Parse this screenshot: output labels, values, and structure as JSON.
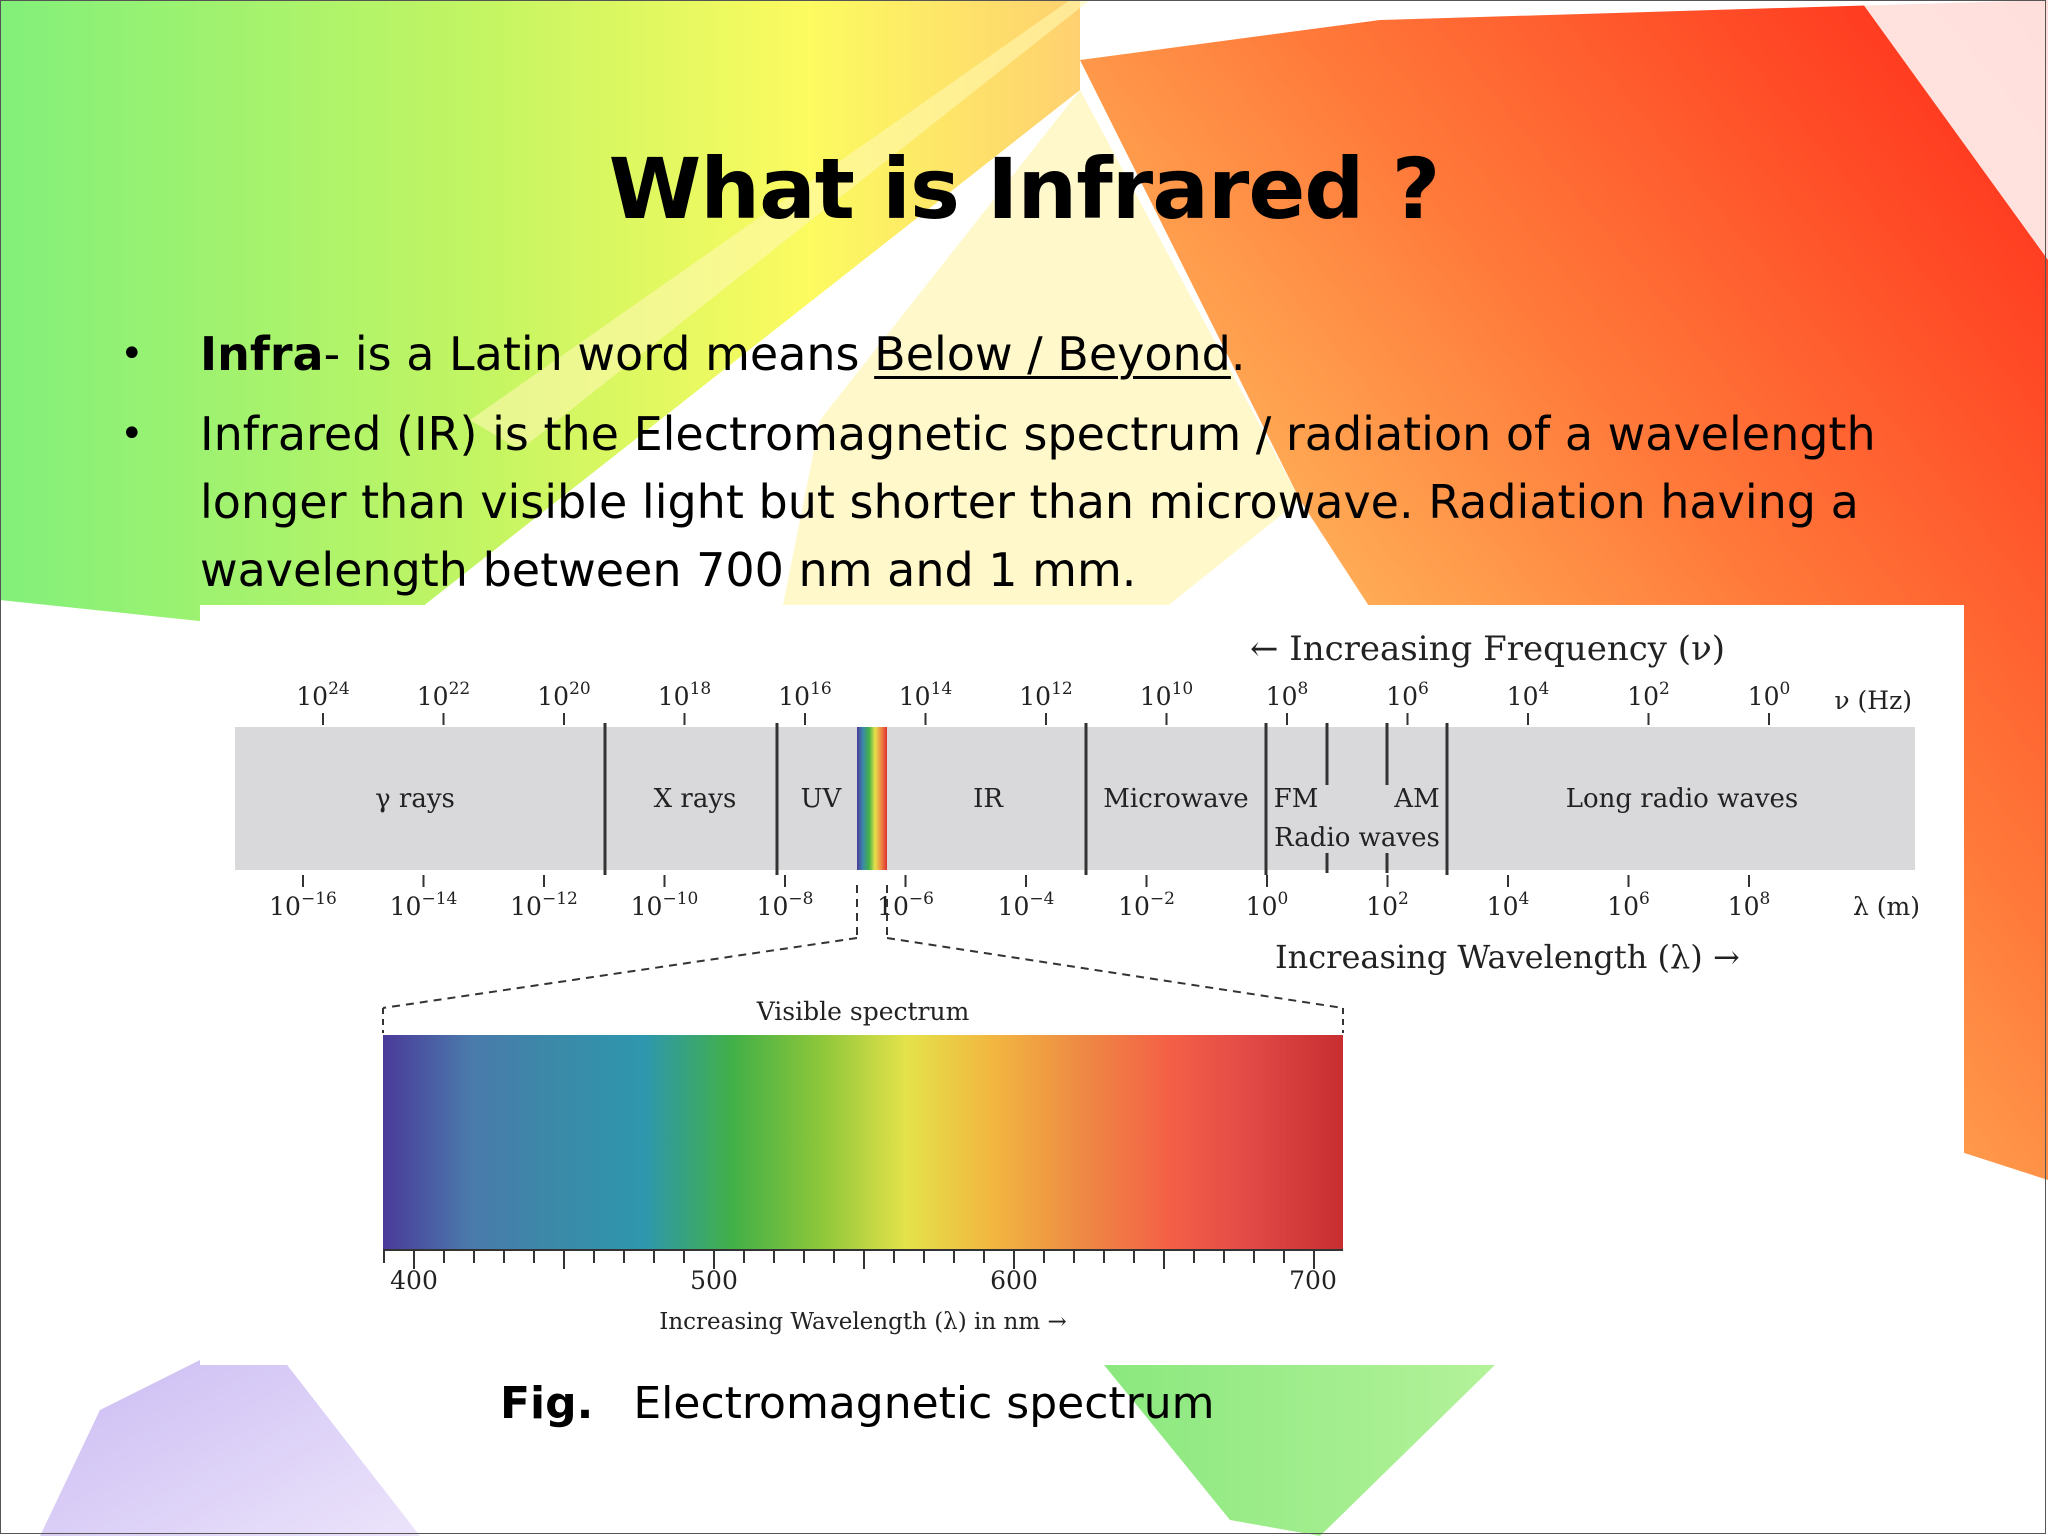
{
  "slide": {
    "title": "What is Infrared ?",
    "bullets": [
      {
        "bold": "Infra",
        "rest": "- is a Latin word means ",
        "underline": "Below / Beyond",
        "end": "."
      },
      {
        "text": "Infrared (IR) is the Electromagnetic spectrum / radiation of a wavelength longer than visible light but shorter than microwave. Radiation having a wavelength between 700 nm and 1 mm."
      }
    ],
    "bullet_symbol": "•",
    "caption_label": "Fig.",
    "caption_text": "Electromagnetic spectrum"
  },
  "spectrum": {
    "freq_arrow_label": "← Increasing Frequency (ν)",
    "freq_unit": "ν (Hz)",
    "freq_ticks": [
      {
        "base": "10",
        "exp": "24"
      },
      {
        "base": "10",
        "exp": "22"
      },
      {
        "base": "10",
        "exp": "20"
      },
      {
        "base": "10",
        "exp": "18"
      },
      {
        "base": "10",
        "exp": "16"
      },
      {
        "base": "10",
        "exp": "14"
      },
      {
        "base": "10",
        "exp": "12"
      },
      {
        "base": "10",
        "exp": "10"
      },
      {
        "base": "10",
        "exp": "8"
      },
      {
        "base": "10",
        "exp": "6"
      },
      {
        "base": "10",
        "exp": "4"
      },
      {
        "base": "10",
        "exp": "2"
      },
      {
        "base": "10",
        "exp": "0"
      }
    ],
    "wave_unit": "λ (m)",
    "wave_ticks": [
      {
        "base": "10",
        "exp": "−16"
      },
      {
        "base": "10",
        "exp": "−14"
      },
      {
        "base": "10",
        "exp": "−12"
      },
      {
        "base": "10",
        "exp": "−10"
      },
      {
        "base": "10",
        "exp": "−8"
      },
      {
        "base": "10",
        "exp": "−6"
      },
      {
        "base": "10",
        "exp": "−4"
      },
      {
        "base": "10",
        "exp": "−2"
      },
      {
        "base": "10",
        "exp": "0"
      },
      {
        "base": "10",
        "exp": "2"
      },
      {
        "base": "10",
        "exp": "4"
      },
      {
        "base": "10",
        "exp": "6"
      },
      {
        "base": "10",
        "exp": "8"
      }
    ],
    "wave_arrow_label": "Increasing Wavelength (λ) →",
    "bands": [
      "γ rays",
      "X rays",
      "UV",
      "IR",
      "Microwave",
      "FM",
      "AM",
      "Long radio waves"
    ],
    "radio_label": "Radio waves",
    "visible_title": "Visible spectrum",
    "visible_ticks": [
      "400",
      "500",
      "600",
      "700"
    ],
    "visible_axis_label": "Increasing Wavelength (λ) in nm →",
    "band_fill": "#d9d8da",
    "visible_colors": [
      "#4a3a9a",
      "#4a7aab",
      "#3a8aa8",
      "#2e97ad",
      "#42b048",
      "#8cc63a",
      "#e4e24a",
      "#f2b640",
      "#ee8a44",
      "#f46046",
      "#e04846",
      "#c62e30"
    ]
  }
}
